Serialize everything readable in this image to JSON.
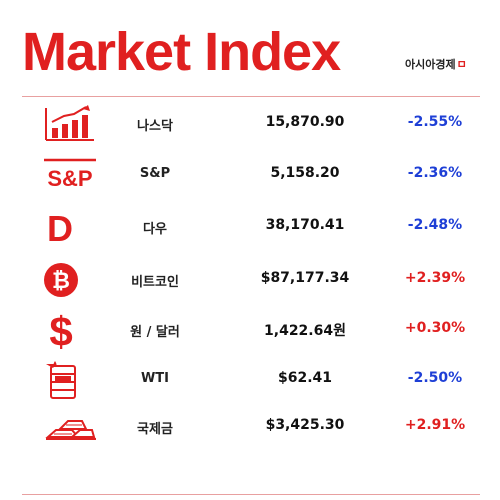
{
  "header": {
    "title": "Market Index",
    "brand": "아시아경제",
    "brand_mark": "ㅁ"
  },
  "colors": {
    "accent": "#e02020",
    "negative": "#1e3fd6",
    "positive": "#e02020"
  },
  "rows": [
    {
      "icon": "bar-chart-icon",
      "name": "나스닥",
      "value": "15,870.90",
      "change": "-2.55%",
      "direction": "neg"
    },
    {
      "icon": "sp-logo-icon",
      "icon_text": "S&P",
      "name": "S&P",
      "value": "5,158.20",
      "change": "-2.36%",
      "direction": "neg"
    },
    {
      "icon": "dow-logo-icon",
      "icon_text": "D",
      "name": "다우",
      "value": "38,170.41",
      "change": "-2.48%",
      "direction": "neg"
    },
    {
      "icon": "bitcoin-icon",
      "name": "비트코인",
      "value": "$87,177.34",
      "change": "+2.39%",
      "direction": "pos"
    },
    {
      "icon": "dollar-sign-icon",
      "icon_text": "$",
      "name": "원 / 달러",
      "value": "1,422.64원",
      "change": "+0.30%",
      "direction": "pos"
    },
    {
      "icon": "oil-barrel-icon",
      "name": "WTI",
      "value": "$62.41",
      "change": "-2.50%",
      "direction": "neg"
    },
    {
      "icon": "gold-bars-icon",
      "name": "국제금",
      "value": "$3,425.30",
      "change": "+2.91%",
      "direction": "pos"
    }
  ]
}
